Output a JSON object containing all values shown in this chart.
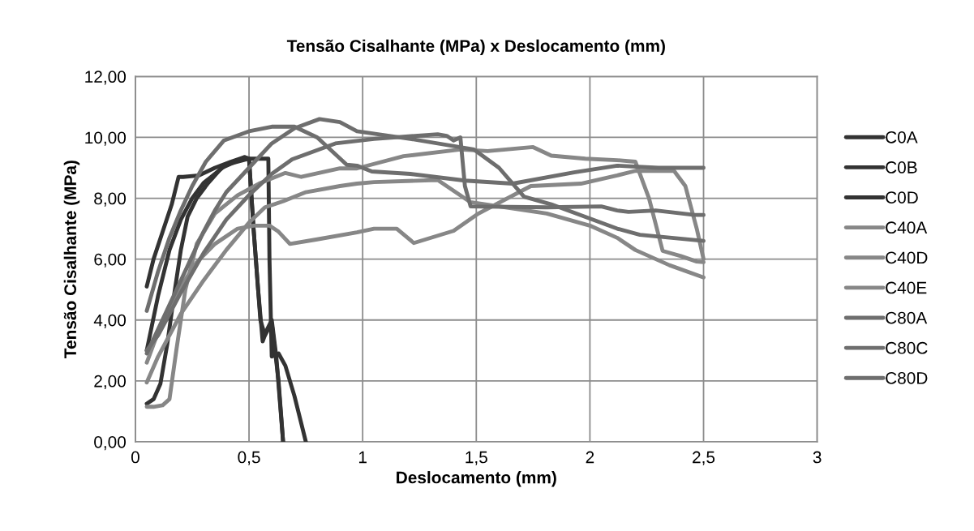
{
  "chart_data": {
    "type": "line",
    "title": "Tensão Cisalhante (MPa) x Deslocamento (mm)",
    "xlabel": "Deslocamento (mm)",
    "ylabel": "Tensão Cisalhante (MPa)",
    "xlim": [
      0,
      3
    ],
    "xticks": [
      0,
      {
        "value": 0.5,
        "label": "0,5"
      },
      1,
      {
        "value": 1.5,
        "label": "1,5"
      },
      2,
      {
        "value": 2.5,
        "label": "2,5"
      },
      3
    ],
    "ylim": [
      0,
      12
    ],
    "yticks": [
      {
        "value": 0,
        "label": "0,00"
      },
      {
        "value": 2,
        "label": "2,00"
      },
      {
        "value": 4,
        "label": "4,00"
      },
      {
        "value": 6,
        "label": "6,00"
      },
      {
        "value": 8,
        "label": "8,00"
      },
      {
        "value": 10,
        "label": "10,00"
      },
      {
        "value": 12,
        "label": "12,00"
      }
    ],
    "grid": true,
    "legend": "right",
    "line_style": "solid",
    "marker": "none",
    "series": [
      {
        "name": "C0A",
        "color": "#333333",
        "x": [
          0.05,
          0.08,
          0.12,
          0.16,
          0.19,
          0.21,
          0.28,
          0.35,
          0.42,
          0.48,
          0.5,
          0.52,
          0.54,
          0.56,
          0.58,
          0.6,
          0.62,
          0.65
        ],
        "values": [
          5.1,
          6.0,
          6.9,
          7.8,
          8.7,
          8.7,
          8.75,
          9.0,
          9.2,
          9.35,
          9.3,
          7.0,
          5.0,
          3.3,
          3.7,
          4.0,
          2.8,
          0
        ]
      },
      {
        "name": "C0B",
        "color": "#333333",
        "x": [
          0.05,
          0.1,
          0.15,
          0.2,
          0.25,
          0.3,
          0.4,
          0.45,
          0.5,
          0.57,
          0.585,
          0.59,
          0.6,
          0.63,
          0.66,
          0.7,
          0.75
        ],
        "values": [
          3.0,
          4.8,
          6.3,
          7.3,
          8.0,
          8.5,
          9.1,
          9.2,
          9.3,
          9.3,
          9.3,
          6.0,
          2.8,
          2.9,
          2.5,
          1.5,
          0
        ]
      },
      {
        "name": "C0D",
        "color": "#333333",
        "x": [
          0.05,
          0.08,
          0.11,
          0.14,
          0.17,
          0.2,
          0.23,
          0.27,
          0.32,
          0.38,
          0.44,
          0.48,
          0.5,
          0.52,
          0.55,
          0.57,
          0.6,
          0.63,
          0.65
        ],
        "values": [
          1.25,
          1.4,
          1.9,
          3.2,
          4.8,
          6.3,
          7.4,
          8.0,
          8.5,
          9.0,
          9.2,
          9.35,
          9.3,
          7.0,
          4.0,
          3.5,
          3.9,
          2.0,
          0
        ]
      },
      {
        "name": "C40A",
        "color": "#878787",
        "x": [
          0.05,
          0.1,
          0.15,
          0.2,
          0.27,
          0.35,
          0.45,
          0.52,
          0.59,
          0.63,
          0.68,
          0.8,
          0.975,
          1.05,
          1.15,
          1.225,
          1.4,
          1.51,
          1.74,
          1.96,
          2.12,
          2.2,
          2.37,
          2.42,
          2.47,
          2.5
        ],
        "values": [
          2.6,
          3.6,
          4.4,
          5.1,
          5.9,
          6.5,
          7.0,
          7.1,
          7.1,
          6.9,
          6.5,
          6.65,
          6.88,
          7.0,
          7.0,
          6.53,
          6.93,
          7.5,
          8.4,
          8.48,
          8.75,
          8.9,
          8.9,
          8.4,
          7.0,
          6.0
        ]
      },
      {
        "name": "C40D",
        "color": "#878787",
        "x": [
          0.05,
          0.1,
          0.2,
          0.3,
          0.4,
          0.5,
          0.57,
          0.65,
          0.75,
          0.9,
          0.975,
          1.05,
          1.33,
          1.475,
          1.81,
          2.0,
          2.12,
          2.2,
          2.35,
          2.5
        ],
        "values": [
          1.95,
          2.8,
          4.2,
          5.3,
          6.3,
          7.2,
          7.7,
          7.9,
          8.2,
          8.4,
          8.48,
          8.53,
          8.6,
          7.87,
          7.5,
          7.1,
          6.7,
          6.3,
          5.8,
          5.4
        ]
      },
      {
        "name": "C40E",
        "color": "#878787",
        "x": [
          0.05,
          0.08,
          0.12,
          0.15,
          0.18,
          0.22,
          0.27,
          0.35,
          0.45,
          0.55,
          0.66,
          0.73,
          0.9,
          0.975,
          1.18,
          1.43,
          1.55,
          1.75,
          1.83,
          1.98,
          2.12,
          2.2,
          2.26,
          2.32,
          2.4,
          2.47,
          2.5
        ],
        "values": [
          1.15,
          1.15,
          1.2,
          1.4,
          3.0,
          5.0,
          6.5,
          7.5,
          8.1,
          8.5,
          8.83,
          8.7,
          8.98,
          8.98,
          9.38,
          9.6,
          9.55,
          9.68,
          9.4,
          9.3,
          9.25,
          9.2,
          8.0,
          6.27,
          6.1,
          5.92,
          5.9
        ]
      },
      {
        "name": "C80A",
        "color": "#6e6e6e",
        "x": [
          0.05,
          0.1,
          0.15,
          0.2,
          0.25,
          0.3,
          0.35,
          0.4,
          0.5,
          0.6,
          0.7,
          0.81,
          0.9,
          0.975,
          1.21,
          1.49,
          1.6,
          1.71,
          1.83,
          2.12,
          2.22,
          2.5
        ],
        "values": [
          2.9,
          3.7,
          4.5,
          5.3,
          6.1,
          6.9,
          7.6,
          8.2,
          9.0,
          9.8,
          10.3,
          10.6,
          10.5,
          10.2,
          9.95,
          9.6,
          9.0,
          8.05,
          7.8,
          7.0,
          6.8,
          6.6
        ]
      },
      {
        "name": "C80C",
        "color": "#6e6e6e",
        "x": [
          0.05,
          0.1,
          0.15,
          0.2,
          0.25,
          0.31,
          0.39,
          0.5,
          0.6,
          0.7,
          0.8,
          0.93,
          0.975,
          1.04,
          1.21,
          1.45,
          1.66,
          1.93,
          2.12,
          2.3,
          2.5
        ],
        "values": [
          4.3,
          5.6,
          6.7,
          7.6,
          8.4,
          9.2,
          9.9,
          10.2,
          10.35,
          10.35,
          10.0,
          9.1,
          9.07,
          8.88,
          8.8,
          8.58,
          8.48,
          8.85,
          9.07,
          9.0,
          9.0
        ]
      },
      {
        "name": "C80D",
        "color": "#6e6e6e",
        "x": [
          0.05,
          0.1,
          0.15,
          0.2,
          0.3,
          0.4,
          0.5,
          0.6,
          0.69,
          0.88,
          1.05,
          1.33,
          1.37,
          1.4,
          1.43,
          1.45,
          1.475,
          1.81,
          2.05,
          2.12,
          2.17,
          2.29,
          2.46,
          2.5
        ],
        "values": [
          3.0,
          3.5,
          4.2,
          4.9,
          6.2,
          7.3,
          8.1,
          8.8,
          9.28,
          9.8,
          9.95,
          10.1,
          10.05,
          9.9,
          10.0,
          8.4,
          7.73,
          7.7,
          7.73,
          7.6,
          7.55,
          7.6,
          7.45,
          7.45
        ]
      }
    ]
  }
}
